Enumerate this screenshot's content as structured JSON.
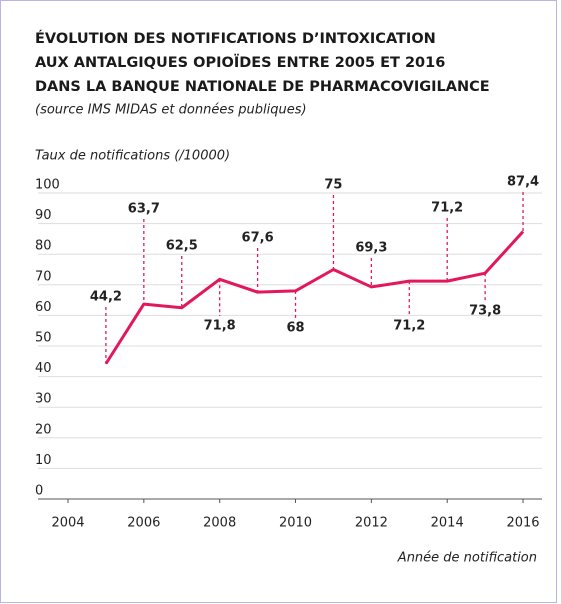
{
  "chart_data": {
    "type": "line",
    "title": [
      "ÉVOLUTION DES NOTIFICATIONS D’INTOXICATION",
      "AUX ANTALGIQUES OPIOÏDES ENTRE 2005 ET 2016",
      "DANS LA BANQUE NATIONALE DE PHARMACOVIGILANCE"
    ],
    "subtitle": "(source IMS MIDAS et données publiques)",
    "y_label": "Taux de notifications  (/10000)",
    "x_label": "Année de notification",
    "x": [
      2005,
      2006,
      2007,
      2008,
      2009,
      2010,
      2011,
      2012,
      2013,
      2014,
      2015,
      2016
    ],
    "series": [
      {
        "name": "Taux de notifications",
        "color": "#e2185a",
        "values": [
          44.2,
          63.7,
          62.5,
          71.8,
          67.6,
          68,
          75,
          69.3,
          71.2,
          71.2,
          73.8,
          87.4
        ],
        "value_labels": [
          "44,2",
          "63,7",
          "62,5",
          "71,8",
          "67,6",
          "68",
          "75",
          "69,3",
          "71,2",
          "71,2",
          "73,8",
          "87,4"
        ]
      }
    ],
    "xlim": [
      2004,
      2016.5
    ],
    "xticks": [
      2004,
      2006,
      2008,
      2010,
      2012,
      2014,
      2016
    ],
    "ylim": [
      0,
      100
    ],
    "yticks": [
      0,
      10,
      20,
      30,
      40,
      50,
      60,
      70,
      80,
      90,
      100
    ],
    "grid": true
  }
}
